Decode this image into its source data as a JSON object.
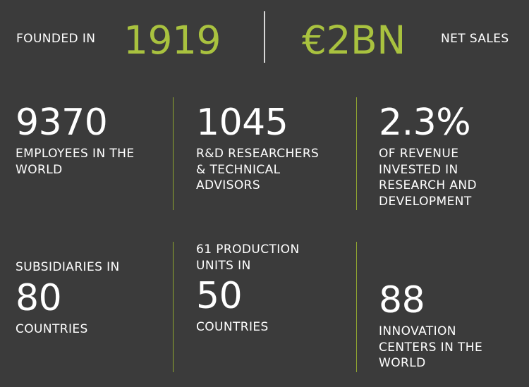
{
  "colors": {
    "background": "#3b3b3b",
    "accent": "#a9c23f",
    "text": "#ffffff",
    "divider_green": "#8fa530",
    "divider_white": "#d7d7d7"
  },
  "header": {
    "founded_label": "FOUNDED IN",
    "founded_value": "1919",
    "sales_value": "€2BN",
    "sales_label": "NET SALES"
  },
  "stats": {
    "employees": {
      "value": "9370",
      "line1": "EMPLOYEES IN THE",
      "line2": "WORLD"
    },
    "researchers": {
      "value": "1045",
      "line1": "R&D RESEARCHERS",
      "line2": "& TECHNICAL",
      "line3": "ADVISORS"
    },
    "revenue": {
      "value": "2.3%",
      "line1": "OF REVENUE",
      "line2": "INVESTED IN",
      "line3": "RESEARCH AND",
      "line4": "DEVELOPMENT"
    },
    "subsidiaries": {
      "top": "SUBSIDIARIES IN",
      "value": "80",
      "bottom": "COUNTRIES"
    },
    "production": {
      "top1": "61 PRODUCTION",
      "top2": "UNITS IN",
      "value": "50",
      "bottom": "COUNTRIES"
    },
    "innovation": {
      "value": "88",
      "line1": "INNOVATION",
      "line2": "CENTERS IN THE",
      "line3": "WORLD"
    }
  }
}
